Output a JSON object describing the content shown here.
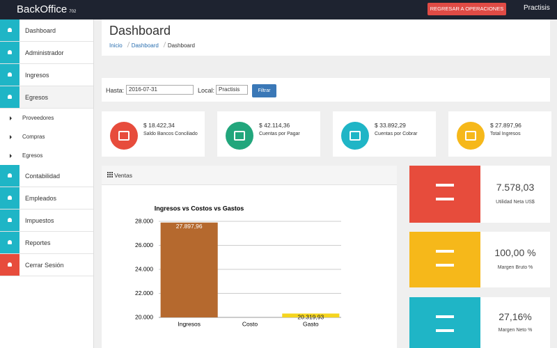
{
  "topbar": {
    "brand": "BackOffice",
    "brand_sub": "702",
    "button": "REGRESAR A OPERACIONES",
    "user": "Practisis"
  },
  "sidebar": {
    "items": [
      {
        "label": "Dashboard"
      },
      {
        "label": "Administrador"
      },
      {
        "label": "Ingresos"
      },
      {
        "label": "Egresos",
        "active": true
      },
      {
        "label": "Proveedores",
        "sub": true
      },
      {
        "label": "Compras",
        "sub": true
      },
      {
        "label": "Egresos",
        "sub": true
      },
      {
        "label": "Contabilidad"
      },
      {
        "label": "Empleados"
      },
      {
        "label": "Impuestos"
      },
      {
        "label": "Reportes"
      },
      {
        "label": "Cerrar Sesión",
        "danger": true
      }
    ]
  },
  "header": {
    "title": "Dashboard",
    "breadcrumb": [
      "Inicio",
      "Dashboard",
      "Dashboard"
    ]
  },
  "filter": {
    "date_label": "Hasta:",
    "date": "2016-07-31",
    "local_label": "Local:",
    "local": "Practisis",
    "button": "Filtrar"
  },
  "cards": [
    {
      "amount": "$ 18.422,34",
      "label": "Saldo Bancos Conciliado",
      "color": "#e74c3c"
    },
    {
      "amount": "$ 42.114,36",
      "label": "Cuentas por Pagar",
      "color": "#22a67c"
    },
    {
      "amount": "$ 33.892,29",
      "label": "Cuentas por Cobrar",
      "color": "#1fb5c6"
    },
    {
      "amount": "$ 27.897,96",
      "label": "Total Ingresos",
      "color": "#f6b81a"
    }
  ],
  "panel": {
    "title": "Ventas"
  },
  "chart_data": {
    "type": "bar",
    "title": "Ingresos vs Costos vs Gastos",
    "categories": [
      "Ingresos",
      "Costo",
      "Gasto"
    ],
    "values": [
      27897.96,
      null,
      20319.93
    ],
    "value_labels": [
      "27.897,96",
      null,
      "20.319,93"
    ],
    "colors": [
      "#b5692e",
      "#b5692e",
      "#f5d51f"
    ],
    "ylim": [
      20000,
      28000
    ],
    "yticks": [
      {
        "value": 20000,
        "label": "20.000"
      },
      {
        "value": 22000,
        "label": "22.000"
      },
      {
        "value": 24000,
        "label": "24.000"
      },
      {
        "value": 26000,
        "label": "26.000"
      },
      {
        "value": 28000,
        "label": "28.000"
      }
    ],
    "grid": true
  },
  "widgets": [
    {
      "value": "7.578,03",
      "label": "Utilidad Neta US$",
      "color": "#e74c3c"
    },
    {
      "value": "100,00 %",
      "label": "Margen Bruto %",
      "color": "#f6b81a"
    },
    {
      "value": "27,16%",
      "label": "Margen Neto %",
      "color": "#1fb5c6"
    }
  ]
}
